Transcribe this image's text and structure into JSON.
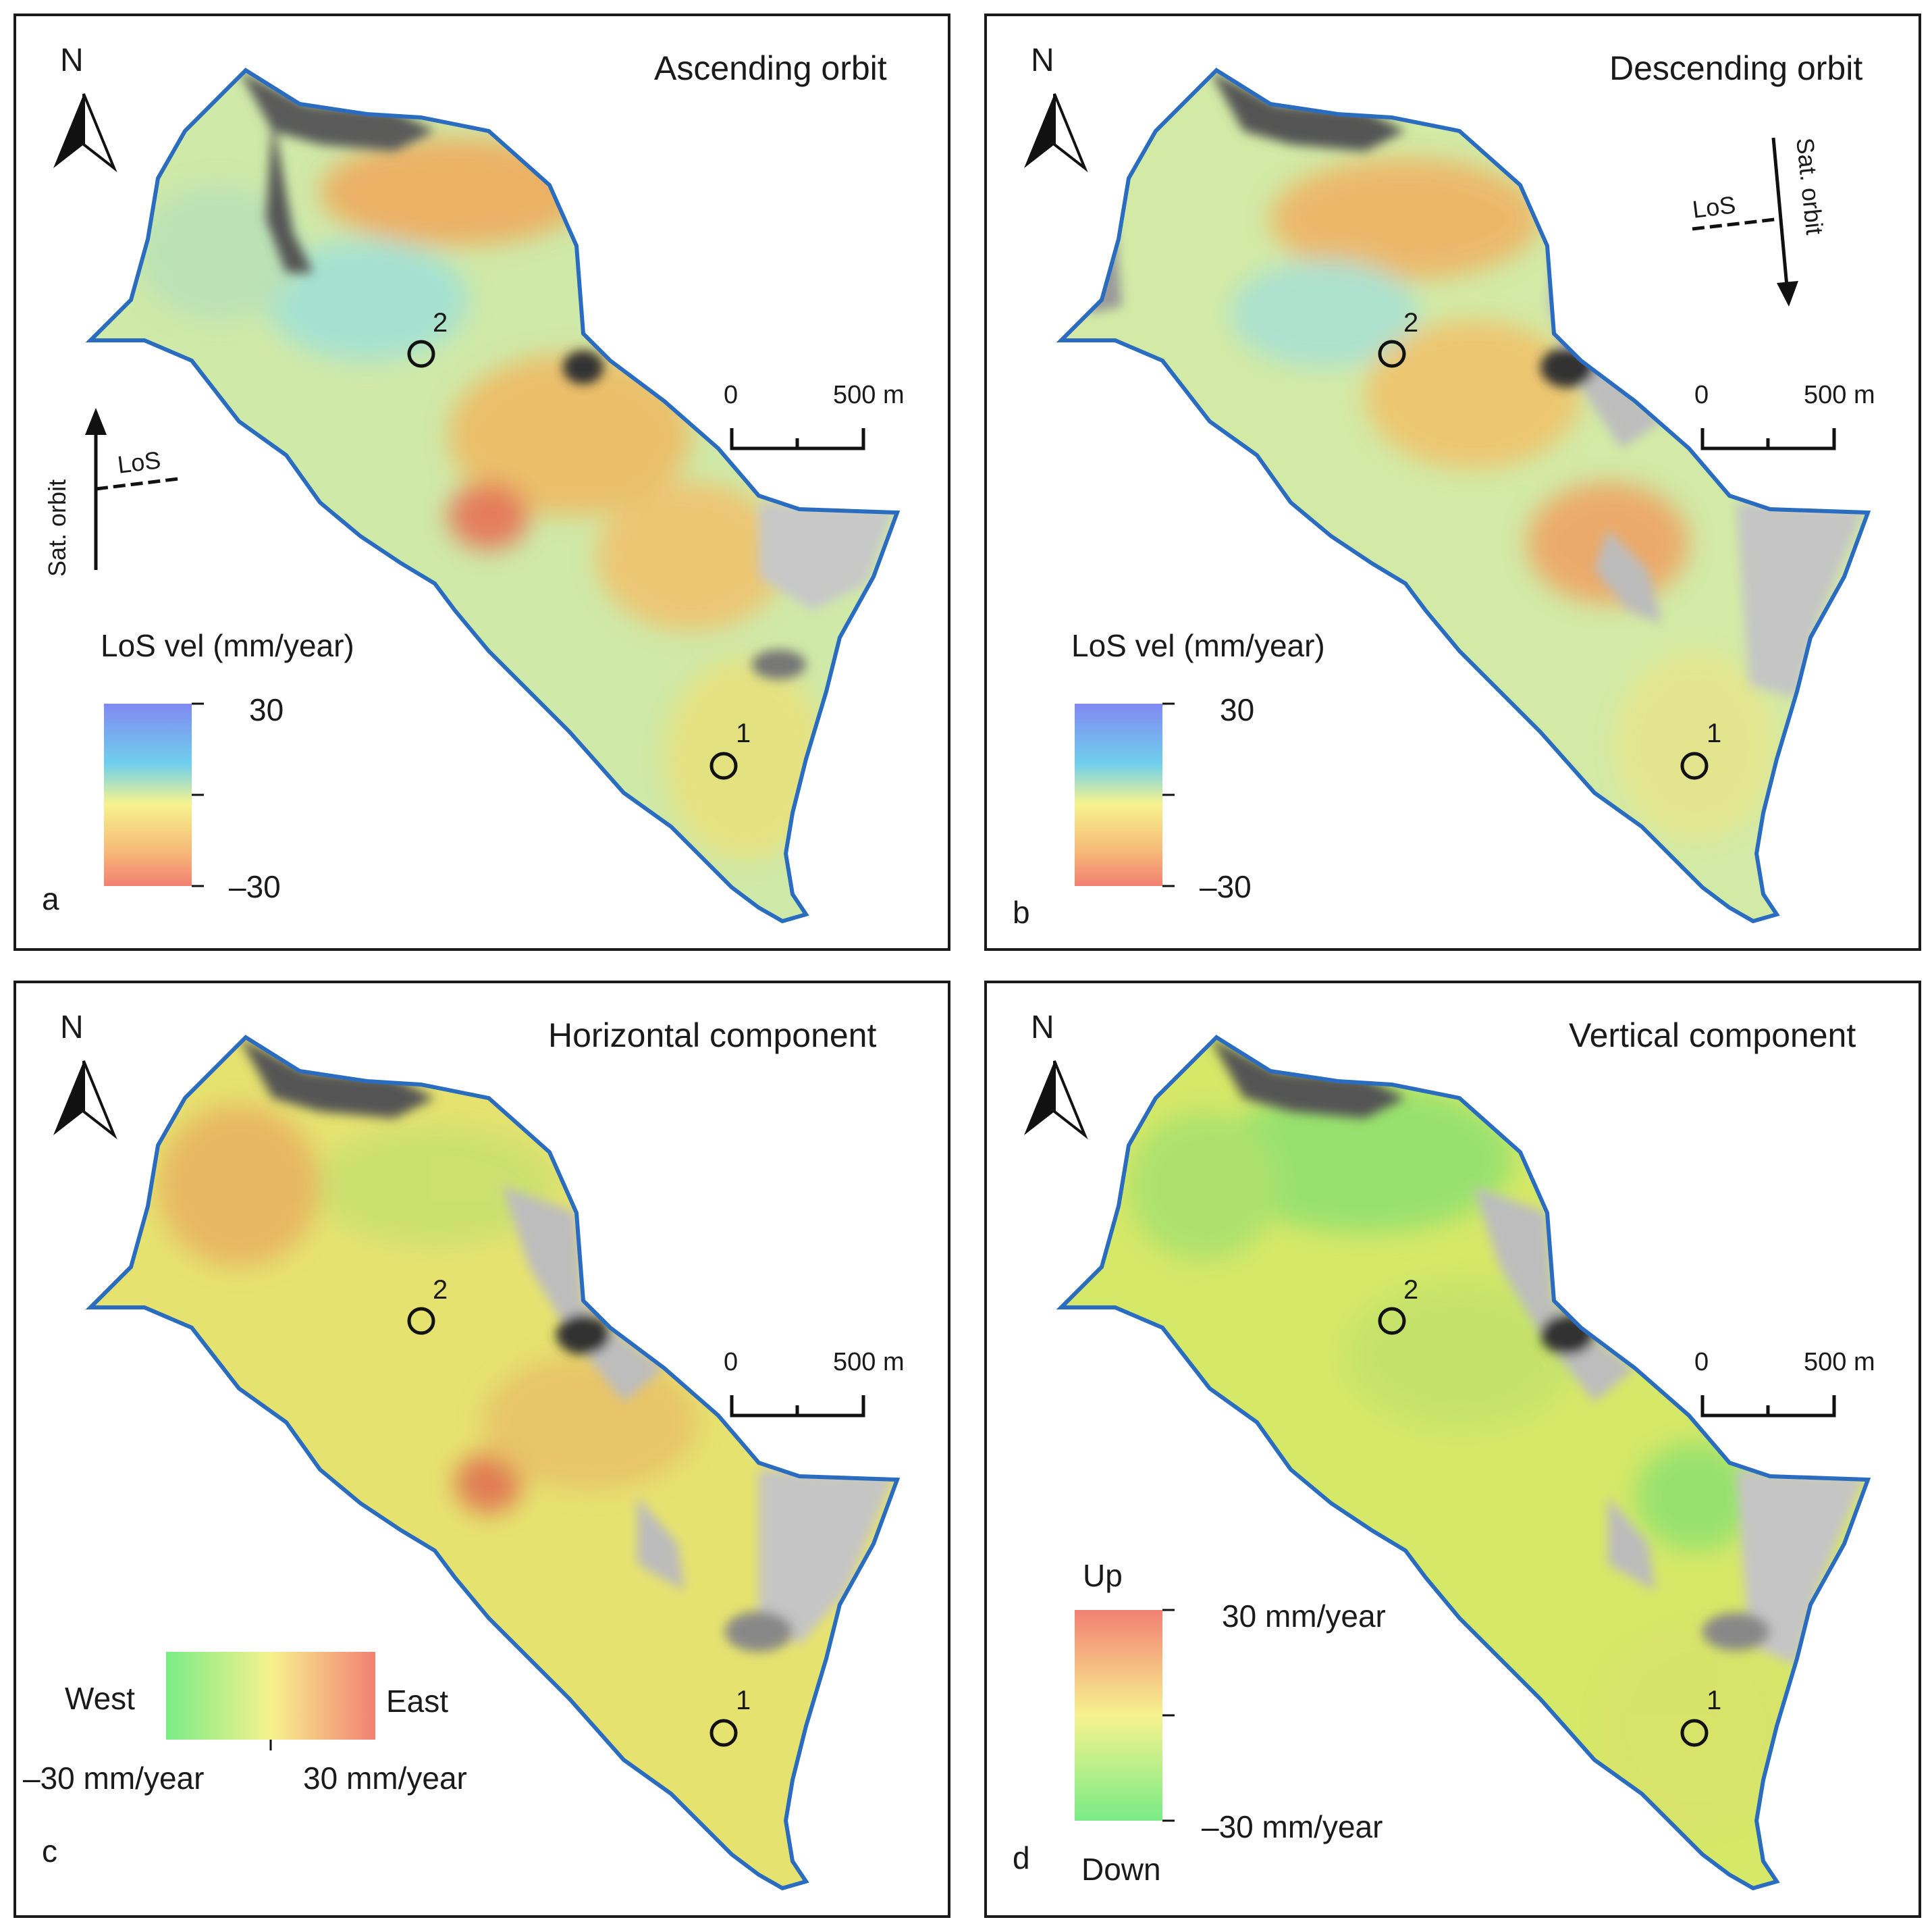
{
  "colors": {
    "outline": "#2a6cc0",
    "frame": "#1a1a1a",
    "hillshade_light": "#c9c9c9",
    "hillshade_dark": "#4a4a4a"
  },
  "north_label": "N",
  "scale_bar": {
    "label_start": "0",
    "label_end": "500 m"
  },
  "sites": [
    {
      "id": "site-1",
      "label": "1"
    },
    {
      "id": "site-2",
      "label": "2"
    }
  ],
  "panels": [
    {
      "id": "a",
      "letter": "a",
      "title": "Ascending orbit",
      "sat_orbit_label": "Sat. orbit",
      "los_label": "LoS",
      "legend": {
        "title": "LoS vel (mm/year)",
        "max_label": "30",
        "min_label": "–30",
        "colors_top_to_bottom": [
          "#6a74f0",
          "#56c8e8",
          "#f5f07a",
          "#f5b060",
          "#f06a5a"
        ]
      }
    },
    {
      "id": "b",
      "letter": "b",
      "title": "Descending orbit",
      "sat_orbit_label": "Sat. orbit",
      "los_label": "LoS",
      "legend": {
        "title": "LoS vel (mm/year)",
        "max_label": "30",
        "min_label": "–30",
        "colors_top_to_bottom": [
          "#6a74f0",
          "#56c8e8",
          "#f5f07a",
          "#f5b060",
          "#f06a5a"
        ]
      }
    },
    {
      "id": "c",
      "letter": "c",
      "title": "Horizontal component",
      "legend": {
        "left_label": "West",
        "right_label": "East",
        "min_label": "–30 mm/year",
        "max_label": "30 mm/year",
        "colors_left_to_right": [
          "#62e870",
          "#f5f07a",
          "#f06a5a"
        ]
      }
    },
    {
      "id": "d",
      "letter": "d",
      "title": "Vertical component",
      "legend": {
        "top_label": "Up",
        "bottom_label": "Down",
        "max_label": "30 mm/year",
        "min_label": "–30 mm/year",
        "colors_top_to_bottom": [
          "#f06a5a",
          "#f5f07a",
          "#62e870"
        ]
      }
    }
  ]
}
